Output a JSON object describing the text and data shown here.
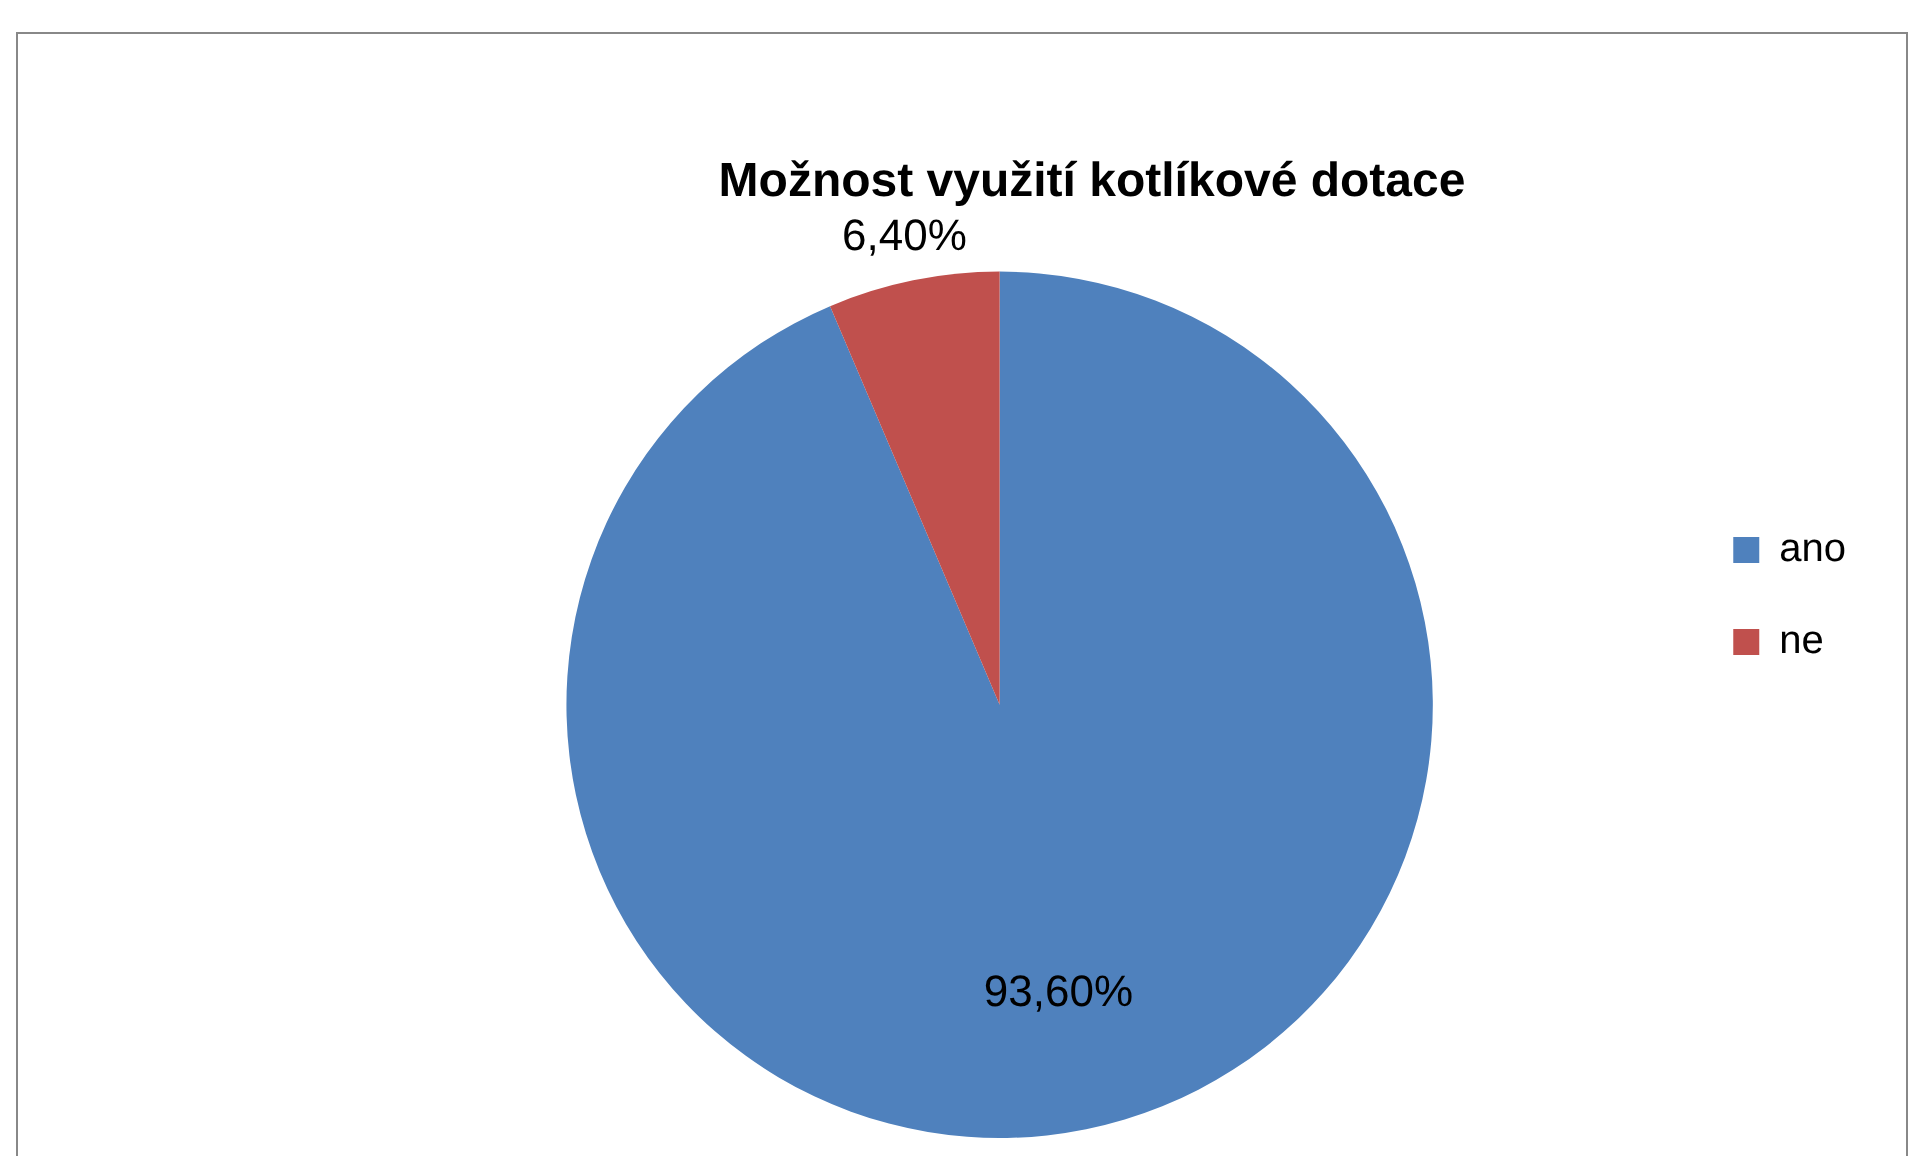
{
  "chart_data": {
    "type": "pie",
    "title": "Možnost využití kotlíkové dotace",
    "categories": [
      "ano",
      "ne"
    ],
    "values": [
      93.6,
      6.4
    ],
    "colors": [
      "#4f81bd",
      "#c0504d"
    ],
    "value_labels": [
      "93,60%",
      "6,40%"
    ],
    "legend": "right"
  }
}
